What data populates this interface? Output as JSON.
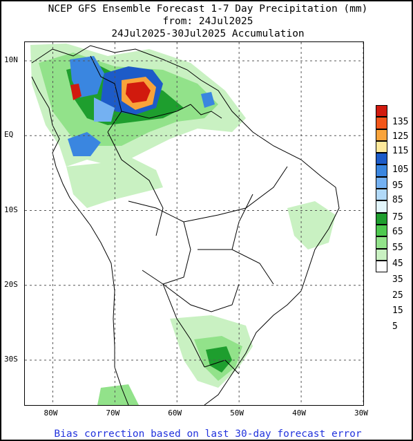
{
  "title": {
    "line1": "NCEP GFS Ensemble Forecast 1-7 Day Precipitation (mm)",
    "line2": "from: 24Jul2025",
    "line3": "24Jul2025-30Jul2025 Accumulation"
  },
  "footer": "Bias correction based on last 30-day forecast error",
  "axes": {
    "lat_labels": [
      "10N",
      "EQ",
      "10S",
      "20S",
      "30S"
    ],
    "lat_values": [
      10,
      0,
      -10,
      -20,
      -30
    ],
    "lon_labels": [
      "80W",
      "70W",
      "60W",
      "50W",
      "40W",
      "30W"
    ],
    "lon_values": [
      -80,
      -70,
      -60,
      -50,
      -40,
      -30
    ],
    "lon_range": [
      -84.5,
      -30
    ],
    "lat_range": [
      -36,
      12.5
    ],
    "grid": "dashed"
  },
  "legend": {
    "labels": [
      "135",
      "125",
      "115",
      "105",
      "95",
      "85",
      "75",
      "65",
      "55",
      "45",
      "35",
      "25",
      "15",
      "5"
    ],
    "colors": [
      "#d11a0e",
      "#f2561a",
      "#f9a33a",
      "#fde89a",
      "#1d5bc8",
      "#3a86e0",
      "#74b1f2",
      "#b1d9f8",
      "#e2f5fb",
      "#1e9e2e",
      "#4ec94f",
      "#92e28a",
      "#c9f1c2",
      "#ffffff"
    ]
  }
}
